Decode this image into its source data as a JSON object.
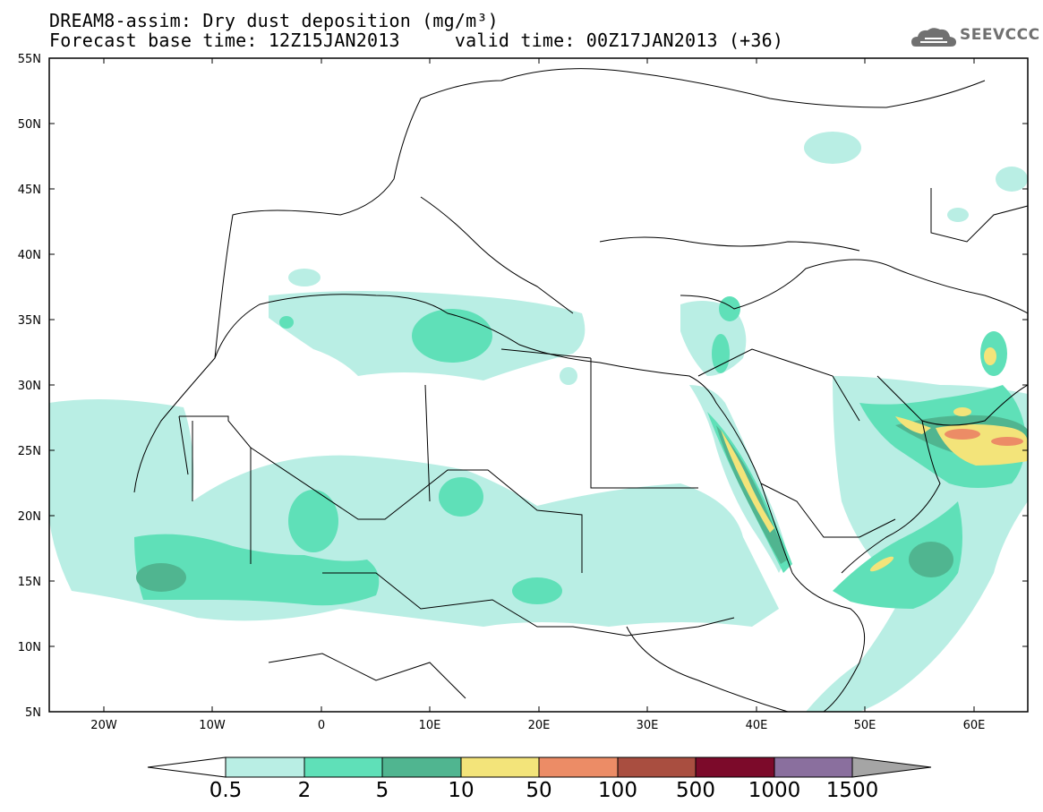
{
  "header": {
    "title_line1": "DREAM8-assim: Dry dust deposition (mg/m³)",
    "title_line2": "Forecast base time: 12Z15JAN2013     valid time: 00Z17JAN2013 (+36)"
  },
  "logo": {
    "text": "SEEVCCC",
    "icon": "cloud-logo-icon"
  },
  "axes": {
    "lat_labels": [
      "55N",
      "50N",
      "45N",
      "40N",
      "35N",
      "30N",
      "25N",
      "20N",
      "15N",
      "10N",
      "5N"
    ],
    "lon_labels": [
      "20W",
      "10W",
      "0",
      "10E",
      "20E",
      "30E",
      "40E",
      "50E",
      "60E"
    ]
  },
  "colorbar": {
    "labels": [
      "0.5",
      "2",
      "5",
      "10",
      "50",
      "100",
      "500",
      "1000",
      "1500"
    ],
    "colors": [
      "#b9eee4",
      "#5fe0b8",
      "#50b590",
      "#f3e47a",
      "#ec8c66",
      "#a94e40",
      "#7c0a2a",
      "#8a6f9e",
      "#a5a5a5"
    ]
  }
}
